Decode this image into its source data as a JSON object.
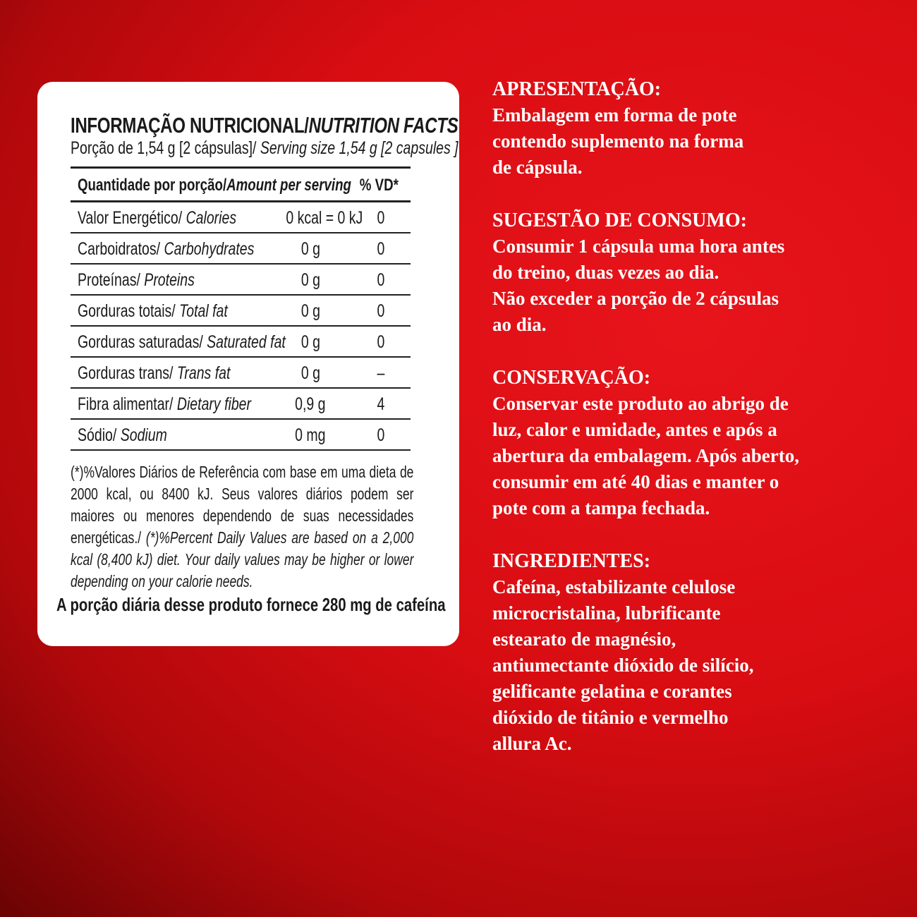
{
  "nutrition": {
    "title": "INFORMAÇÃO NUTRICIONAL/",
    "title_en": "NUTRITION FACTS",
    "serving_pt": "Porção de 1,54 g  [2 cápsulas]/ ",
    "serving_en": "Serving size 1,54 g [2 capsules ]",
    "header_pt": "Quantidade por porção/",
    "header_en": "Amount per serving",
    "header_vd": "% VD*",
    "rows": [
      {
        "pt": "Valor Energético/ ",
        "en": "Calories",
        "amount": "0 kcal = 0 kJ",
        "vd": "0"
      },
      {
        "pt": "Carboidratos/ ",
        "en": "Carbohydrates",
        "amount": "0 g",
        "vd": "0"
      },
      {
        "pt": "Proteínas/ ",
        "en": "Proteins",
        "amount": "0 g",
        "vd": "0"
      },
      {
        "pt": "Gorduras totais/ ",
        "en": "Total fat",
        "amount": "0 g",
        "vd": "0"
      },
      {
        "pt": "Gorduras saturadas/ ",
        "en": "Saturated fat",
        "amount": "0 g",
        "vd": "0"
      },
      {
        "pt": "Gorduras trans/ ",
        "en": "Trans fat",
        "amount": "0 g",
        "vd": "–"
      },
      {
        "pt": "Fibra alimentar/ ",
        "en": "Dietary fiber",
        "amount": "0,9 g",
        "vd": "4"
      },
      {
        "pt": "Sódio/ ",
        "en": "Sodium",
        "amount": "0 mg",
        "vd": "0"
      }
    ],
    "footnote_pt": "(*)%Valores Diários de Referência com base em uma dieta de 2000 kcal, ou 8400 kJ. Seus valores diários podem ser maiores ou menores dependendo de suas necessidades energéticas./ ",
    "footnote_en": "(*)%Percent Daily Values are based on a 2,000 kcal (8,400 kJ) diet. Your daily values may be higher or lower depending on your calorie needs.",
    "caffeine": "A porção diária desse produto fornece 280 mg de cafeína"
  },
  "sections": [
    {
      "heading": "APRESENTAÇÃO:",
      "body": "Embalagem em forma de pote\ncontendo suplemento na forma\nde cápsula."
    },
    {
      "heading": "SUGESTÃO DE CONSUMO:",
      "body": "Consumir 1 cápsula uma hora antes\ndo treino, duas vezes ao dia.\nNão exceder a porção de 2 cápsulas\nao dia."
    },
    {
      "heading": "CONSERVAÇÃO:",
      "body": "Conservar este produto ao abrigo de\nluz, calor e umidade, antes e após a\nabertura da embalagem. Após aberto,\nconsumir em até 40 dias e manter o\npote com a tampa fechada."
    },
    {
      "heading": "INGREDIENTES:",
      "body": "Cafeína, estabilizante celulose\nmicrocristalina, lubrificante\nestearato de magnésio,\nantiumectante dióxido de silício,\ngelificante gelatina e corantes\ndióxido de titânio e vermelho\nallura Ac."
    }
  ],
  "colors": {
    "background": "#d80d12",
    "card": "#ffffff",
    "text": "#ffffff"
  }
}
